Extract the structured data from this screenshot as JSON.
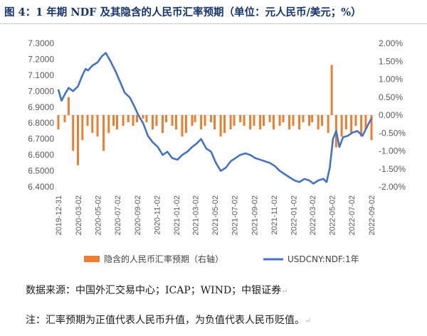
{
  "figure": {
    "title": "图 4：1 年期 NDF 及其隐含的人民币汇率预期（单位：元人民币/美元；%）",
    "source": "数据来源：中国外汇交易中心；ICAP；WIND；中银证券",
    "note": "注：汇率预期为正值代表人民币升值，为负值代表人民币贬值。",
    "edit_mark": "↵",
    "colors": {
      "title": "#15356b",
      "line": "#4472c4",
      "bars": "#ed7d31"
    }
  },
  "chart_data": {
    "type": "line+bar",
    "x_tick_labels": [
      "2019-12-31",
      "2020-03-02",
      "2020-05-02",
      "2020-07-02",
      "2020-09-02",
      "2020-11-02",
      "2021-01-02",
      "2021-03-02",
      "2021-05-02",
      "2021-07-02",
      "2021-09-02",
      "2021-11-02",
      "2022-01-02",
      "2022-03-02",
      "2022-05-02",
      "2022-07-02",
      "2022-09-02"
    ],
    "y_left": {
      "range": [
        6.4,
        7.3
      ],
      "ticks": [
        "6.4000",
        "6.5000",
        "6.6000",
        "6.7000",
        "6.8000",
        "6.9000",
        "7.0000",
        "7.1000",
        "7.2000",
        "7.3000"
      ]
    },
    "y_right": {
      "range": [
        -2.0,
        2.0
      ],
      "ticks": [
        "-2.00%",
        "-1.50%",
        "-1.00%",
        "-0.50%",
        "0.00%",
        "0.50%",
        "1.00%",
        "1.50%",
        "2.00%"
      ]
    },
    "legend_position": "bottom",
    "series": [
      {
        "name": "隐含的人民币汇率预期（右轴）",
        "type": "bar",
        "axis": "right",
        "x": [
          "2019-12-31",
          "2020-01-20",
          "2020-02-01",
          "2020-02-15",
          "2020-03-01",
          "2020-03-15",
          "2020-03-31",
          "2020-04-15",
          "2020-05-01",
          "2020-05-20",
          "2020-06-05",
          "2020-06-20",
          "2020-07-01",
          "2020-07-20",
          "2020-08-05",
          "2020-08-20",
          "2020-09-01",
          "2020-09-20",
          "2020-10-01",
          "2020-10-20",
          "2020-11-01",
          "2020-11-20",
          "2020-12-01",
          "2020-12-20",
          "2021-01-01",
          "2021-01-20",
          "2021-02-01",
          "2021-02-20",
          "2021-03-01",
          "2021-03-20",
          "2021-04-01",
          "2021-04-20",
          "2021-05-01",
          "2021-05-20",
          "2021-06-01",
          "2021-06-20",
          "2021-07-01",
          "2021-07-20",
          "2021-08-01",
          "2021-08-20",
          "2021-09-01",
          "2021-09-20",
          "2021-10-01",
          "2021-10-20",
          "2021-11-01",
          "2021-11-20",
          "2021-12-01",
          "2021-12-20",
          "2022-01-01",
          "2022-01-20",
          "2022-02-01",
          "2022-02-20",
          "2022-03-01",
          "2022-03-20",
          "2022-04-01",
          "2022-04-20",
          "2022-05-01",
          "2022-05-15",
          "2022-06-01",
          "2022-06-15",
          "2022-07-01",
          "2022-07-15",
          "2022-08-01",
          "2022-08-15",
          "2022-09-02"
        ],
        "values": [
          -0.4,
          -0.2,
          0.5,
          -1.0,
          -1.4,
          -0.7,
          -0.3,
          -0.5,
          -0.6,
          -1.0,
          -0.5,
          -0.3,
          -0.4,
          -0.3,
          -0.2,
          -0.3,
          -0.2,
          -0.1,
          -0.2,
          -0.4,
          -0.3,
          -0.5,
          -0.2,
          -0.3,
          -0.4,
          -0.6,
          -0.5,
          -0.3,
          -0.2,
          -0.4,
          -0.3,
          -0.2,
          -0.4,
          -0.6,
          -0.5,
          -0.4,
          -0.3,
          -0.2,
          -0.3,
          -0.4,
          -0.3,
          -0.4,
          -0.3,
          -0.2,
          -0.4,
          -0.3,
          -0.2,
          -0.4,
          -0.3,
          -0.4,
          -0.2,
          -0.3,
          -0.2,
          -0.4,
          -0.3,
          -0.5,
          1.4,
          -0.9,
          -0.6,
          -0.4,
          -0.5,
          -0.3,
          -0.6,
          -0.4,
          -0.7
        ]
      },
      {
        "name": "USDCNY:NDF:1年",
        "type": "line",
        "axis": "left",
        "x": [
          "2019-12-31",
          "2020-01-10",
          "2020-01-20",
          "2020-02-01",
          "2020-02-15",
          "2020-03-01",
          "2020-03-15",
          "2020-03-25",
          "2020-04-01",
          "2020-04-15",
          "2020-05-01",
          "2020-05-15",
          "2020-05-27",
          "2020-06-10",
          "2020-06-25",
          "2020-07-10",
          "2020-07-25",
          "2020-08-10",
          "2020-08-25",
          "2020-09-05",
          "2020-09-20",
          "2020-10-05",
          "2020-10-20",
          "2020-11-05",
          "2020-11-20",
          "2020-12-05",
          "2020-12-20",
          "2021-01-05",
          "2021-01-20",
          "2021-02-05",
          "2021-02-20",
          "2021-03-05",
          "2021-03-20",
          "2021-04-05",
          "2021-04-20",
          "2021-05-05",
          "2021-05-20",
          "2021-06-05",
          "2021-06-20",
          "2021-07-05",
          "2021-07-20",
          "2021-08-05",
          "2021-08-20",
          "2021-09-05",
          "2021-09-20",
          "2021-10-05",
          "2021-10-20",
          "2021-11-05",
          "2021-11-20",
          "2021-12-05",
          "2021-12-20",
          "2022-01-05",
          "2022-01-20",
          "2022-02-05",
          "2022-02-20",
          "2022-03-05",
          "2022-03-20",
          "2022-04-05",
          "2022-04-15",
          "2022-04-25",
          "2022-05-05",
          "2022-05-15",
          "2022-05-25",
          "2022-06-05",
          "2022-06-20",
          "2022-07-05",
          "2022-07-20",
          "2022-08-05",
          "2022-08-20",
          "2022-09-02"
        ],
        "values": [
          7.01,
          6.94,
          6.98,
          7.02,
          7.0,
          7.03,
          7.1,
          7.14,
          7.13,
          7.16,
          7.18,
          7.22,
          7.24,
          7.19,
          7.13,
          7.06,
          6.99,
          6.96,
          6.9,
          6.85,
          6.8,
          6.72,
          6.68,
          6.65,
          6.6,
          6.62,
          6.58,
          6.57,
          6.6,
          6.62,
          6.65,
          6.67,
          6.7,
          6.64,
          6.62,
          6.55,
          6.5,
          6.52,
          6.56,
          6.58,
          6.6,
          6.61,
          6.6,
          6.58,
          6.57,
          6.56,
          6.55,
          6.53,
          6.5,
          6.48,
          6.46,
          6.44,
          6.43,
          6.45,
          6.44,
          6.42,
          6.44,
          6.45,
          6.43,
          6.52,
          6.7,
          6.75,
          6.65,
          6.71,
          6.72,
          6.74,
          6.75,
          6.72,
          6.78,
          6.83
        ]
      }
    ]
  }
}
